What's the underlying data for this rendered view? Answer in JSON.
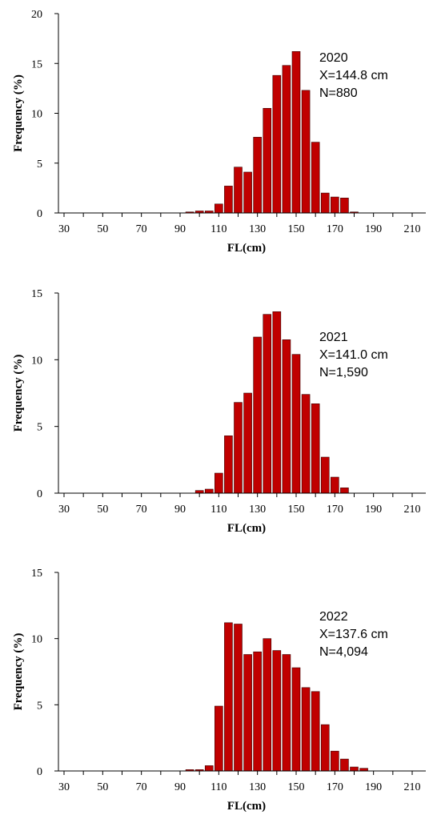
{
  "colors": {
    "bar_fill": "#c00000",
    "bar_stroke": "#3a0000"
  },
  "chart_data": [
    {
      "type": "bar",
      "xlabel": "FL(cm)",
      "ylabel": "Frequency (%)",
      "xlim": [
        25,
        220
      ],
      "ylim": [
        0,
        20
      ],
      "yticks": [
        0,
        5,
        10,
        15,
        20
      ],
      "xticks": [
        30,
        50,
        70,
        90,
        110,
        130,
        150,
        170,
        190,
        210
      ],
      "annotation": [
        "2020",
        "X=144.8 cm",
        "N=880"
      ],
      "x": [
        95,
        100,
        105,
        110,
        115,
        120,
        125,
        130,
        135,
        140,
        145,
        150,
        155,
        160,
        165,
        170,
        175,
        180
      ],
      "values": [
        0.1,
        0.2,
        0.2,
        0.9,
        2.7,
        4.6,
        4.1,
        7.6,
        10.5,
        13.8,
        14.8,
        16.2,
        12.3,
        7.1,
        2.0,
        1.6,
        1.5,
        0.1
      ]
    },
    {
      "type": "bar",
      "xlabel": "FL(cm)",
      "ylabel": "Frequency (%)",
      "xlim": [
        25,
        220
      ],
      "ylim": [
        0,
        15
      ],
      "yticks": [
        0,
        5,
        10,
        15
      ],
      "xticks": [
        30,
        50,
        70,
        90,
        110,
        130,
        150,
        170,
        190,
        210
      ],
      "annotation": [
        "2021",
        "X=141.0 cm",
        "N=1,590"
      ],
      "x": [
        100,
        105,
        110,
        115,
        120,
        125,
        130,
        135,
        140,
        145,
        150,
        155,
        160,
        165,
        170,
        175
      ],
      "values": [
        0.2,
        0.3,
        1.5,
        4.3,
        6.8,
        7.5,
        11.7,
        13.4,
        13.6,
        11.5,
        10.4,
        7.4,
        6.7,
        2.7,
        1.2,
        0.4
      ]
    },
    {
      "type": "bar",
      "xlabel": "FL(cm)",
      "ylabel": "Frequency (%)",
      "xlim": [
        25,
        220
      ],
      "ylim": [
        0,
        15
      ],
      "yticks": [
        0,
        5,
        10,
        15
      ],
      "xticks": [
        30,
        50,
        70,
        90,
        110,
        130,
        150,
        170,
        190,
        210
      ],
      "annotation": [
        "2022",
        "X=137.6 cm",
        "N=4,094"
      ],
      "x": [
        95,
        100,
        105,
        110,
        115,
        120,
        125,
        130,
        135,
        140,
        145,
        150,
        155,
        160,
        165,
        170,
        175,
        180,
        185
      ],
      "values": [
        0.1,
        0.1,
        0.4,
        4.9,
        11.2,
        11.1,
        8.8,
        9.0,
        10.0,
        9.1,
        8.8,
        7.8,
        6.3,
        6.0,
        3.5,
        1.5,
        0.9,
        0.3,
        0.2
      ]
    }
  ]
}
